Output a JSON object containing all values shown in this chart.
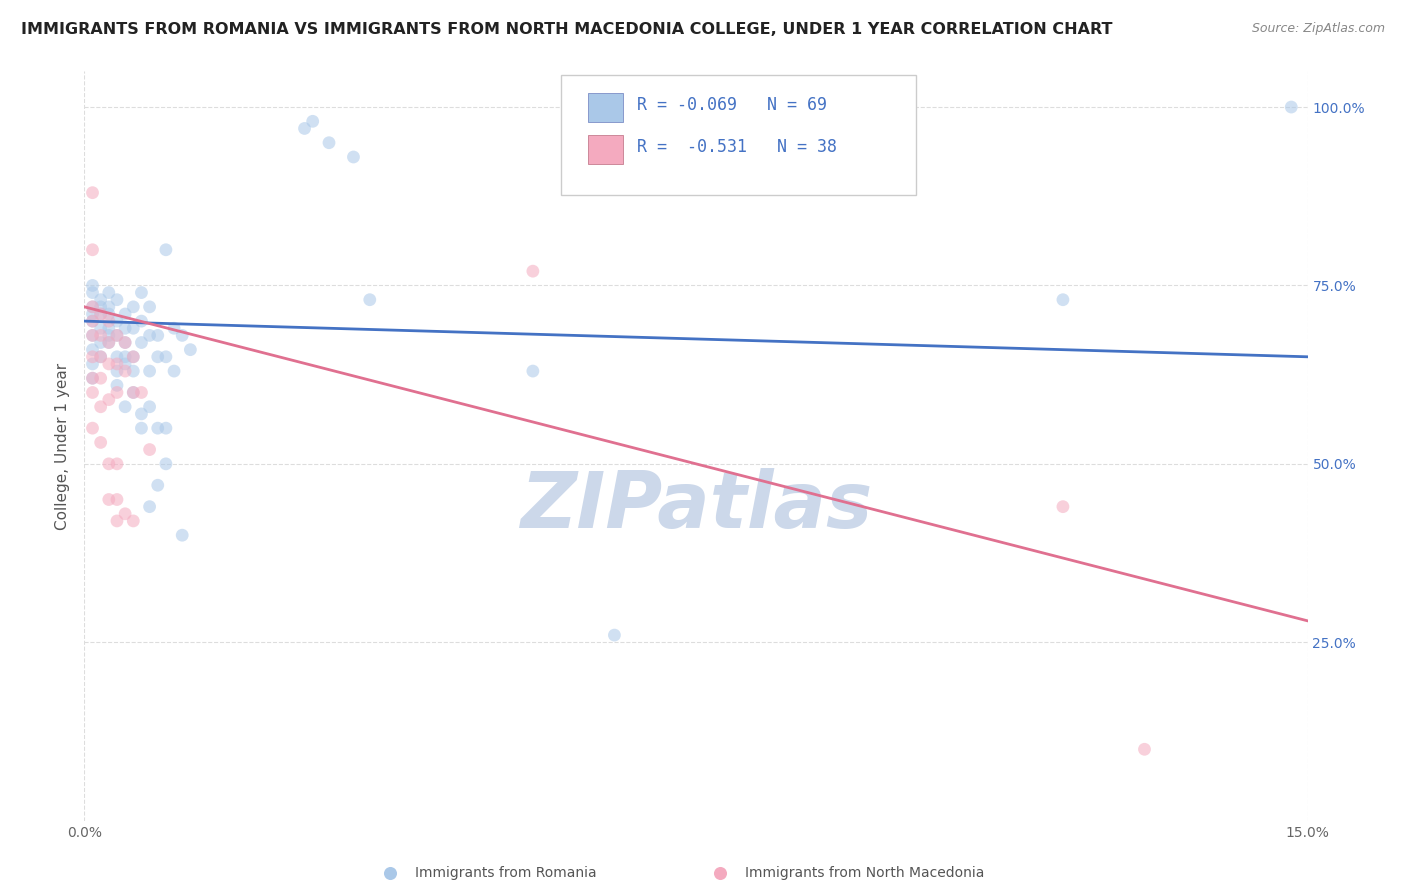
{
  "title": "IMMIGRANTS FROM ROMANIA VS IMMIGRANTS FROM NORTH MACEDONIA COLLEGE, UNDER 1 YEAR CORRELATION CHART",
  "source": "Source: ZipAtlas.com",
  "ylabel_label": "College, Under 1 year",
  "xlim": [
    0.0,
    0.15
  ],
  "ylim": [
    0.0,
    1.05
  ],
  "xtick_labels": [
    "0.0%",
    "15.0%"
  ],
  "xtick_positions": [
    0.0,
    0.15
  ],
  "ytick_labels": [
    "25.0%",
    "50.0%",
    "75.0%",
    "100.0%"
  ],
  "ytick_positions": [
    0.25,
    0.5,
    0.75,
    1.0
  ],
  "romania_r": -0.069,
  "romania_n": 69,
  "macedonia_r": -0.531,
  "macedonia_n": 38,
  "romania_line_y0": 0.7,
  "romania_line_y1": 0.65,
  "macedonia_line_y0": 0.72,
  "macedonia_line_y1": 0.28,
  "romania_scatter": [
    [
      0.001,
      0.72
    ],
    [
      0.001,
      0.7
    ],
    [
      0.001,
      0.68
    ],
    [
      0.001,
      0.74
    ],
    [
      0.001,
      0.71
    ],
    [
      0.001,
      0.66
    ],
    [
      0.001,
      0.75
    ],
    [
      0.001,
      0.62
    ],
    [
      0.001,
      0.64
    ],
    [
      0.002,
      0.72
    ],
    [
      0.002,
      0.69
    ],
    [
      0.002,
      0.71
    ],
    [
      0.002,
      0.67
    ],
    [
      0.002,
      0.73
    ],
    [
      0.002,
      0.65
    ],
    [
      0.003,
      0.74
    ],
    [
      0.003,
      0.71
    ],
    [
      0.003,
      0.69
    ],
    [
      0.003,
      0.68
    ],
    [
      0.003,
      0.67
    ],
    [
      0.003,
      0.72
    ],
    [
      0.004,
      0.73
    ],
    [
      0.004,
      0.7
    ],
    [
      0.004,
      0.68
    ],
    [
      0.004,
      0.65
    ],
    [
      0.004,
      0.63
    ],
    [
      0.004,
      0.61
    ],
    [
      0.005,
      0.71
    ],
    [
      0.005,
      0.69
    ],
    [
      0.005,
      0.67
    ],
    [
      0.005,
      0.65
    ],
    [
      0.005,
      0.64
    ],
    [
      0.005,
      0.58
    ],
    [
      0.006,
      0.72
    ],
    [
      0.006,
      0.69
    ],
    [
      0.006,
      0.65
    ],
    [
      0.006,
      0.63
    ],
    [
      0.006,
      0.6
    ],
    [
      0.007,
      0.74
    ],
    [
      0.007,
      0.7
    ],
    [
      0.007,
      0.67
    ],
    [
      0.007,
      0.57
    ],
    [
      0.007,
      0.55
    ],
    [
      0.008,
      0.72
    ],
    [
      0.008,
      0.68
    ],
    [
      0.008,
      0.63
    ],
    [
      0.008,
      0.58
    ],
    [
      0.008,
      0.44
    ],
    [
      0.009,
      0.68
    ],
    [
      0.009,
      0.65
    ],
    [
      0.009,
      0.55
    ],
    [
      0.009,
      0.47
    ],
    [
      0.01,
      0.8
    ],
    [
      0.01,
      0.65
    ],
    [
      0.01,
      0.55
    ],
    [
      0.01,
      0.5
    ],
    [
      0.011,
      0.69
    ],
    [
      0.011,
      0.63
    ],
    [
      0.012,
      0.68
    ],
    [
      0.012,
      0.4
    ],
    [
      0.013,
      0.66
    ],
    [
      0.027,
      0.97
    ],
    [
      0.028,
      0.98
    ],
    [
      0.03,
      0.95
    ],
    [
      0.033,
      0.93
    ],
    [
      0.035,
      0.73
    ],
    [
      0.055,
      0.63
    ],
    [
      0.065,
      0.26
    ],
    [
      0.12,
      0.73
    ],
    [
      0.148,
      1.0
    ]
  ],
  "macedonia_scatter": [
    [
      0.001,
      0.88
    ],
    [
      0.001,
      0.8
    ],
    [
      0.001,
      0.72
    ],
    [
      0.001,
      0.7
    ],
    [
      0.001,
      0.68
    ],
    [
      0.001,
      0.65
    ],
    [
      0.001,
      0.62
    ],
    [
      0.001,
      0.6
    ],
    [
      0.001,
      0.55
    ],
    [
      0.002,
      0.71
    ],
    [
      0.002,
      0.68
    ],
    [
      0.002,
      0.65
    ],
    [
      0.002,
      0.62
    ],
    [
      0.002,
      0.58
    ],
    [
      0.002,
      0.53
    ],
    [
      0.003,
      0.7
    ],
    [
      0.003,
      0.67
    ],
    [
      0.003,
      0.64
    ],
    [
      0.003,
      0.59
    ],
    [
      0.003,
      0.5
    ],
    [
      0.003,
      0.45
    ],
    [
      0.004,
      0.68
    ],
    [
      0.004,
      0.64
    ],
    [
      0.004,
      0.6
    ],
    [
      0.004,
      0.5
    ],
    [
      0.004,
      0.45
    ],
    [
      0.004,
      0.42
    ],
    [
      0.005,
      0.67
    ],
    [
      0.005,
      0.63
    ],
    [
      0.005,
      0.43
    ],
    [
      0.006,
      0.65
    ],
    [
      0.006,
      0.6
    ],
    [
      0.006,
      0.42
    ],
    [
      0.007,
      0.6
    ],
    [
      0.008,
      0.52
    ],
    [
      0.055,
      0.77
    ],
    [
      0.12,
      0.44
    ],
    [
      0.13,
      0.1
    ]
  ],
  "romania_color": "#aac8e8",
  "macedonia_color": "#f4aabf",
  "romania_line_color": "#4472c4",
  "macedonia_line_color": "#e07090",
  "background_color": "#ffffff",
  "grid_color": "#dddddd",
  "watermark_text": "ZIPatlas",
  "watermark_color": "#ccd8ea",
  "scatter_alpha": 0.55,
  "scatter_size": 85,
  "title_fontsize": 11.5,
  "axis_label_fontsize": 11,
  "tick_fontsize": 10,
  "legend_fontsize": 12
}
